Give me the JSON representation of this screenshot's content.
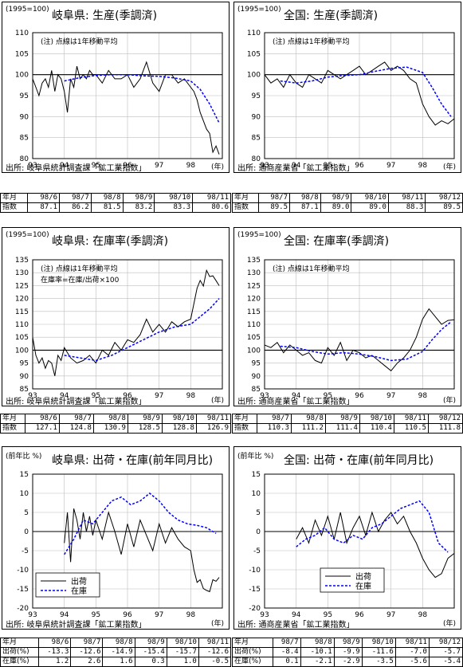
{
  "panels": [
    {
      "id": "gifu-production",
      "unit": "(1995=100)",
      "title": "岐阜県: 生産(季調済)",
      "notes": [
        "(注) 点線は1年移動平均"
      ],
      "source": "出所: 岐阜県統計調査課「鉱工業指数」",
      "unit_year": "(年)",
      "table": {
        "headers": [
          "年月",
          "98/6",
          "98/7",
          "98/8",
          "98/9",
          "98/10",
          "98/11"
        ],
        "rows": [
          {
            "label": "指数",
            "values": [
              "87.1",
              "86.2",
              "81.5",
              "83.2",
              "83.3",
              "80.6"
            ]
          }
        ]
      }
    },
    {
      "id": "national-production",
      "unit": "(1995=100)",
      "title": "全国: 生産(季調済)",
      "notes": [
        "(注) 点線は1年移動平均"
      ],
      "source": "出所: 通商産業省「鉱工業指数」",
      "unit_year": "(年)",
      "table": {
        "headers": [
          "年月",
          "98/7",
          "98/8",
          "98/9",
          "98/10",
          "98/11",
          "98/12"
        ],
        "rows": [
          {
            "label": "指数",
            "values": [
              "89.5",
              "87.1",
              "89.0",
              "89.0",
              "88.3",
              "89.5"
            ]
          }
        ]
      }
    },
    {
      "id": "gifu-inventory-ratio",
      "unit": "(1995=100)",
      "title": "岐阜県: 在庫率(季調済)",
      "notes": [
        "(注) 点線は1年移動平均",
        "在庫率=在庫/出荷×100"
      ],
      "source": "出所: 岐阜県統計調査課「鉱工業指数」",
      "unit_year": "(年)",
      "table": {
        "headers": [
          "年月",
          "98/6",
          "98/7",
          "98/8",
          "98/9",
          "98/10",
          "98/11"
        ],
        "rows": [
          {
            "label": "指数",
            "values": [
              "127.1",
              "124.8",
              "130.9",
              "128.5",
              "128.8",
              "126.9"
            ]
          }
        ]
      }
    },
    {
      "id": "national-inventory-ratio",
      "unit": "(1995=100)",
      "title": "全国: 在庫率(季調済)",
      "notes": [
        "(注) 点線は1年移動平均"
      ],
      "source": "出所: 通商産業省「鉱工業指数」",
      "unit_year": "(年)",
      "table": {
        "headers": [
          "年月",
          "98/7",
          "98/8",
          "98/9",
          "98/10",
          "98/11",
          "98/12"
        ],
        "rows": [
          {
            "label": "指数",
            "values": [
              "110.3",
              "111.2",
              "111.4",
              "110.4",
              "110.5",
              "111.8"
            ]
          }
        ]
      }
    },
    {
      "id": "gifu-shipments-inventory-yoy",
      "unit": "(前年比 %)",
      "title": "岐阜県: 出荷・在庫(前年同月比)",
      "notes": [],
      "source": "出所: 岐阜県統計調査課「鉱工業指数」",
      "unit_year": "(年)",
      "table": {
        "headers": [
          "年月",
          "98/6",
          "98/7",
          "98/8",
          "98/9",
          "98/10",
          "98/11"
        ],
        "rows": [
          {
            "label": "出荷(%)",
            "values": [
              "-13.3",
              "-12.6",
              "-14.9",
              "-15.4",
              "-15.7",
              "-12.6"
            ]
          },
          {
            "label": "在庫(%)",
            "values": [
              "1.2",
              "2.6",
              "1.6",
              "0.3",
              "1.0",
              "-0.5"
            ]
          }
        ]
      }
    },
    {
      "id": "national-shipments-inventory-yoy",
      "unit": "(前年比 %)",
      "title": "全国: 出荷・在庫(前年同月比)",
      "notes": [],
      "source": "出所: 通商産業省「鉱工業指数」",
      "unit_year": "(年)",
      "table": {
        "headers": [
          "年月",
          "98/7",
          "98/8",
          "98/9",
          "98/10",
          "98/11",
          "98/12"
        ],
        "rows": [
          {
            "label": "出荷(%)",
            "values": [
              "-8.4",
              "-10.1",
              "-9.9",
              "-11.6",
              "-7.0",
              "-5.7"
            ]
          },
          {
            "label": "在庫(%)",
            "values": [
              "0.1",
              "-2.1",
              "-2.9",
              "-3.5",
              "-5.6",
              "-5.4"
            ]
          }
        ]
      }
    }
  ],
  "chart_data": [
    {
      "type": "line",
      "title": "岐阜県: 生産(季調済)",
      "x_tick_labels": [
        "93",
        "94",
        "95",
        "96",
        "97",
        "98"
      ],
      "ylim": [
        80,
        110
      ],
      "y_ticks": [
        80,
        85,
        90,
        95,
        100,
        105,
        110
      ],
      "x_start": 1993.0,
      "x_end": 1999.0,
      "reference_line": 100,
      "series": [
        {
          "style": "solid",
          "color": "#000000",
          "x": [
            1993.0,
            1993.1,
            1993.2,
            1993.3,
            1993.4,
            1993.5,
            1993.6,
            1993.7,
            1993.8,
            1993.9,
            1994.0,
            1994.1,
            1994.2,
            1994.3,
            1994.4,
            1994.5,
            1994.6,
            1994.7,
            1994.8,
            1994.9,
            1995.0,
            1995.2,
            1995.4,
            1995.6,
            1995.8,
            1996.0,
            1996.2,
            1996.4,
            1996.6,
            1996.8,
            1997.0,
            1997.2,
            1997.4,
            1997.6,
            1997.8,
            1998.0,
            1998.1,
            1998.2,
            1998.3,
            1998.4,
            1998.5,
            1998.6,
            1998.7,
            1998.8,
            1998.9
          ],
          "values": [
            99,
            97,
            95,
            98,
            99,
            97,
            101,
            96,
            100,
            99,
            96,
            91,
            99,
            97,
            102,
            99,
            100,
            99,
            101,
            100,
            100,
            98,
            101,
            99,
            99,
            100,
            97,
            99,
            103,
            98,
            96,
            100,
            100,
            98,
            99,
            97,
            96,
            94,
            91,
            89,
            87,
            86,
            81.5,
            83,
            81
          ]
        },
        {
          "style": "dashed",
          "color": "#0000ff",
          "x": [
            1994.0,
            1994.5,
            1995.0,
            1995.5,
            1996.0,
            1996.5,
            1997.0,
            1997.5,
            1998.0,
            1998.3,
            1998.6,
            1998.9
          ],
          "values": [
            98.5,
            99.3,
            99.8,
            100.0,
            100.0,
            99.7,
            99.6,
            99.2,
            98.5,
            96.5,
            93.0,
            88.5
          ]
        }
      ]
    },
    {
      "type": "line",
      "title": "全国: 生産(季調済)",
      "x_tick_labels": [
        "93",
        "94",
        "95",
        "96",
        "97",
        "98"
      ],
      "ylim": [
        80,
        110
      ],
      "y_ticks": [
        80,
        85,
        90,
        95,
        100,
        105,
        110
      ],
      "x_start": 1993.0,
      "x_end": 1999.0,
      "reference_line": 100,
      "series": [
        {
          "style": "solid",
          "color": "#000000",
          "x": [
            1993.0,
            1993.2,
            1993.4,
            1993.6,
            1993.8,
            1994.0,
            1994.2,
            1994.4,
            1994.6,
            1994.8,
            1995.0,
            1995.2,
            1995.4,
            1995.6,
            1995.8,
            1996.0,
            1996.2,
            1996.4,
            1996.6,
            1996.8,
            1997.0,
            1997.2,
            1997.4,
            1997.6,
            1997.8,
            1998.0,
            1998.2,
            1998.4,
            1998.6,
            1998.8,
            1999.0
          ],
          "values": [
            100,
            98,
            99,
            97,
            100,
            98,
            97,
            100,
            99,
            98,
            101,
            100,
            99,
            100,
            101,
            102,
            100,
            101,
            102,
            103,
            101,
            102,
            101,
            99,
            98,
            93,
            90,
            88,
            89,
            88.3,
            89.5
          ]
        },
        {
          "style": "dashed",
          "color": "#0000ff",
          "x": [
            1993.5,
            1994.0,
            1994.5,
            1995.0,
            1995.5,
            1996.0,
            1996.5,
            1997.0,
            1997.5,
            1998.0,
            1998.3,
            1998.6,
            1998.9
          ],
          "values": [
            98.5,
            98.0,
            98.5,
            99.4,
            99.8,
            100.0,
            100.8,
            101.5,
            101.8,
            100.5,
            97.0,
            93.0,
            90.0
          ]
        }
      ]
    },
    {
      "type": "line",
      "title": "岐阜県: 在庫率(季調済)",
      "x_tick_labels": [
        "93",
        "94",
        "95",
        "96",
        "97",
        "98"
      ],
      "ylim": [
        85,
        135
      ],
      "y_ticks": [
        85,
        90,
        95,
        100,
        105,
        110,
        115,
        120,
        125,
        130,
        135
      ],
      "x_start": 1993.0,
      "x_end": 1999.0,
      "reference_line": 100,
      "series": [
        {
          "style": "solid",
          "color": "#000000",
          "x": [
            1993.0,
            1993.1,
            1993.2,
            1993.3,
            1993.4,
            1993.5,
            1993.6,
            1993.7,
            1993.8,
            1993.9,
            1994.0,
            1994.2,
            1994.4,
            1994.6,
            1994.8,
            1995.0,
            1995.2,
            1995.4,
            1995.6,
            1995.8,
            1996.0,
            1996.2,
            1996.4,
            1996.6,
            1996.8,
            1997.0,
            1997.2,
            1997.4,
            1997.6,
            1997.8,
            1998.0,
            1998.1,
            1998.2,
            1998.3,
            1998.4,
            1998.5,
            1998.6,
            1998.7,
            1998.8,
            1998.9
          ],
          "values": [
            105,
            98,
            95,
            97,
            93,
            96,
            95,
            90,
            98,
            96,
            101,
            97,
            95,
            96,
            98,
            95,
            100,
            98,
            103,
            100,
            104,
            103,
            106,
            112,
            107,
            110,
            107,
            111,
            109,
            111,
            112,
            118,
            124,
            127,
            124.8,
            130.9,
            128.5,
            128.8,
            126.9,
            125
          ]
        },
        {
          "style": "dashed",
          "color": "#0000ff",
          "x": [
            1994.0,
            1994.5,
            1995.0,
            1995.5,
            1996.0,
            1996.5,
            1997.0,
            1997.5,
            1998.0,
            1998.3,
            1998.6,
            1998.9
          ],
          "values": [
            98.0,
            97.0,
            96.0,
            98.0,
            101.0,
            104.0,
            107.0,
            109.0,
            110.0,
            113.0,
            116.0,
            120.0
          ]
        }
      ]
    },
    {
      "type": "line",
      "title": "全国: 在庫率(季調済)",
      "x_tick_labels": [
        "93",
        "94",
        "95",
        "96",
        "97",
        "98"
      ],
      "ylim": [
        85,
        135
      ],
      "y_ticks": [
        85,
        90,
        95,
        100,
        105,
        110,
        115,
        120,
        125,
        130,
        135
      ],
      "x_start": 1993.0,
      "x_end": 1999.0,
      "reference_line": 100,
      "series": [
        {
          "style": "solid",
          "color": "#000000",
          "x": [
            1993.0,
            1993.2,
            1993.4,
            1993.6,
            1993.8,
            1994.0,
            1994.2,
            1994.4,
            1994.6,
            1994.8,
            1995.0,
            1995.2,
            1995.4,
            1995.6,
            1995.8,
            1996.0,
            1996.2,
            1996.4,
            1996.6,
            1996.8,
            1997.0,
            1997.2,
            1997.4,
            1997.6,
            1997.8,
            1998.0,
            1998.2,
            1998.4,
            1998.6,
            1998.8,
            1999.0
          ],
          "values": [
            102,
            101,
            103,
            99,
            102,
            100,
            98,
            99,
            96,
            95,
            101,
            98,
            103,
            96,
            100,
            99,
            97,
            98,
            96,
            94,
            92,
            95,
            97,
            100,
            105,
            112,
            116,
            113,
            110,
            111.5,
            111.8
          ]
        },
        {
          "style": "dashed",
          "color": "#0000ff",
          "x": [
            1993.5,
            1994.0,
            1994.5,
            1995.0,
            1995.5,
            1996.0,
            1996.5,
            1997.0,
            1997.5,
            1998.0,
            1998.3,
            1998.6,
            1998.9
          ],
          "values": [
            101.5,
            101.0,
            99.5,
            98.5,
            99.0,
            98.5,
            97.5,
            96.0,
            96.5,
            99.5,
            104.0,
            108.0,
            111.0
          ]
        }
      ]
    },
    {
      "type": "line",
      "title": "岐阜県: 出荷・在庫(前年同月比)",
      "x_tick_labels": [
        "93",
        "94",
        "95",
        "96",
        "97",
        "98"
      ],
      "ylim": [
        -20,
        15
      ],
      "y_ticks": [
        -20,
        -15,
        -10,
        -5,
        0,
        5,
        10,
        15
      ],
      "x_start": 1993.0,
      "x_end": 1999.0,
      "reference_line": 0,
      "legend": {
        "position": "bottom-left",
        "entries": [
          "出荷",
          "在庫"
        ]
      },
      "series": [
        {
          "name": "出荷",
          "style": "solid",
          "color": "#000000",
          "x": [
            1994.0,
            1994.1,
            1994.2,
            1994.3,
            1994.4,
            1994.5,
            1994.6,
            1994.7,
            1994.8,
            1994.9,
            1995.0,
            1995.2,
            1995.4,
            1995.6,
            1995.8,
            1996.0,
            1996.2,
            1996.4,
            1996.6,
            1996.8,
            1997.0,
            1997.2,
            1997.4,
            1997.6,
            1997.8,
            1998.0,
            1998.1,
            1998.2,
            1998.3,
            1998.4,
            1998.5,
            1998.6,
            1998.7,
            1998.8,
            1998.9
          ],
          "values": [
            -3,
            5,
            -8,
            6,
            3,
            -2,
            5,
            0,
            4,
            -1,
            3,
            -2,
            5,
            0,
            -6,
            2,
            -4,
            3,
            -1,
            -5,
            2,
            -3,
            1,
            -2,
            -4,
            -5,
            -10,
            -13.3,
            -12.6,
            -14.9,
            -15.4,
            -15.7,
            -12.6,
            -13,
            -12
          ]
        },
        {
          "name": "在庫",
          "style": "dashed",
          "color": "#0000ff",
          "x": [
            1994.0,
            1994.3,
            1994.6,
            1994.9,
            1995.2,
            1995.5,
            1995.8,
            1996.1,
            1996.4,
            1996.7,
            1997.0,
            1997.3,
            1997.6,
            1997.9,
            1998.2,
            1998.5,
            1998.8
          ],
          "values": [
            -6,
            -2,
            3,
            2,
            5,
            8,
            9,
            7,
            8,
            10,
            8,
            5,
            3,
            2,
            1.6,
            1.0,
            -0.5
          ]
        }
      ]
    },
    {
      "type": "line",
      "title": "全国: 出荷・在庫(前年同月比)",
      "x_tick_labels": [
        "93",
        "94",
        "95",
        "96",
        "97",
        "98"
      ],
      "ylim": [
        -20,
        15
      ],
      "y_ticks": [
        -20,
        -15,
        -10,
        -5,
        0,
        5,
        10,
        15
      ],
      "x_start": 1993.0,
      "x_end": 1999.0,
      "reference_line": 0,
      "legend": {
        "position": "bottom-right",
        "entries": [
          "出荷",
          "在庫"
        ]
      },
      "series": [
        {
          "name": "出荷",
          "style": "solid",
          "color": "#000000",
          "x": [
            1994.0,
            1994.2,
            1994.4,
            1994.6,
            1994.8,
            1995.0,
            1995.2,
            1995.4,
            1995.6,
            1995.8,
            1996.0,
            1996.2,
            1996.4,
            1996.6,
            1996.8,
            1997.0,
            1997.2,
            1997.4,
            1997.6,
            1997.8,
            1998.0,
            1998.2,
            1998.4,
            1998.6,
            1998.8,
            1999.0
          ],
          "values": [
            -2,
            1,
            -3,
            3,
            -1,
            4,
            -2,
            5,
            -3,
            1,
            4,
            -1,
            5,
            0,
            3,
            5,
            2,
            4,
            0,
            -3,
            -7,
            -10,
            -12,
            -11,
            -7,
            -5.7
          ]
        },
        {
          "name": "在庫",
          "style": "dashed",
          "color": "#0000ff",
          "x": [
            1994.0,
            1994.3,
            1994.6,
            1994.9,
            1995.2,
            1995.5,
            1995.8,
            1996.1,
            1996.4,
            1996.7,
            1997.0,
            1997.3,
            1997.6,
            1997.9,
            1998.2,
            1998.5,
            1998.8
          ],
          "values": [
            -4,
            -2,
            -1,
            1,
            -2,
            -3,
            -1,
            -2,
            1,
            2,
            4,
            6,
            7,
            8,
            5,
            -3,
            -5.4
          ]
        }
      ]
    }
  ]
}
